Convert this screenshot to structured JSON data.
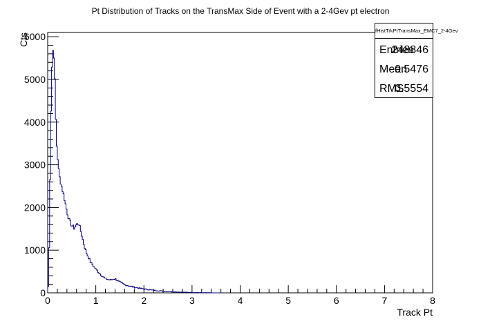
{
  "chart_data": {
    "type": "histogram",
    "title": "Pt Distribution of Tracks on the TransMax Side of Event with a 2-4Gev pt electron",
    "xlabel": "Track Pt",
    "ylabel": "Cts",
    "xlim": [
      0,
      8
    ],
    "ylim": [
      0,
      6100
    ],
    "x_ticks": [
      "0",
      "1",
      "2",
      "3",
      "4",
      "5",
      "6",
      "7",
      "8"
    ],
    "y_ticks": [
      "0",
      "1000",
      "2000",
      "3000",
      "4000",
      "5000",
      "6000"
    ],
    "line_color": "#000080",
    "grid": false,
    "bin_width": 0.02,
    "series": [
      {
        "x": [
          0.0,
          0.02,
          0.04,
          0.06,
          0.08,
          0.1,
          0.12,
          0.14,
          0.16,
          0.18,
          0.2,
          0.22,
          0.24,
          0.26,
          0.28,
          0.3,
          0.35,
          0.4,
          0.45,
          0.5,
          0.55,
          0.6,
          0.65,
          0.7,
          0.75,
          0.8,
          0.9,
          1.0,
          1.1,
          1.2,
          1.3,
          1.4,
          1.5,
          1.6,
          1.8,
          2.0,
          2.2,
          2.4,
          2.6,
          2.8,
          3.0,
          3.2,
          3.4
        ],
        "values": [
          0,
          300,
          1800,
          3600,
          5000,
          5600,
          5750,
          5400,
          4500,
          3600,
          3300,
          3000,
          2750,
          2650,
          2550,
          2450,
          2200,
          1900,
          1700,
          1580,
          1520,
          1600,
          1620,
          1400,
          1150,
          950,
          700,
          560,
          430,
          330,
          300,
          330,
          250,
          190,
          130,
          90,
          60,
          40,
          25,
          15,
          10,
          5,
          2
        ]
      }
    ]
  },
  "stats_box": {
    "name": "fHistTrkPtTransMax_EMC7_2-4Gev",
    "entries_label": "Entries",
    "entries_value": "248846",
    "mean_label": "Mean",
    "mean_value": "0.5476",
    "rms_label": "RMS",
    "rms_value": "0.5554"
  }
}
